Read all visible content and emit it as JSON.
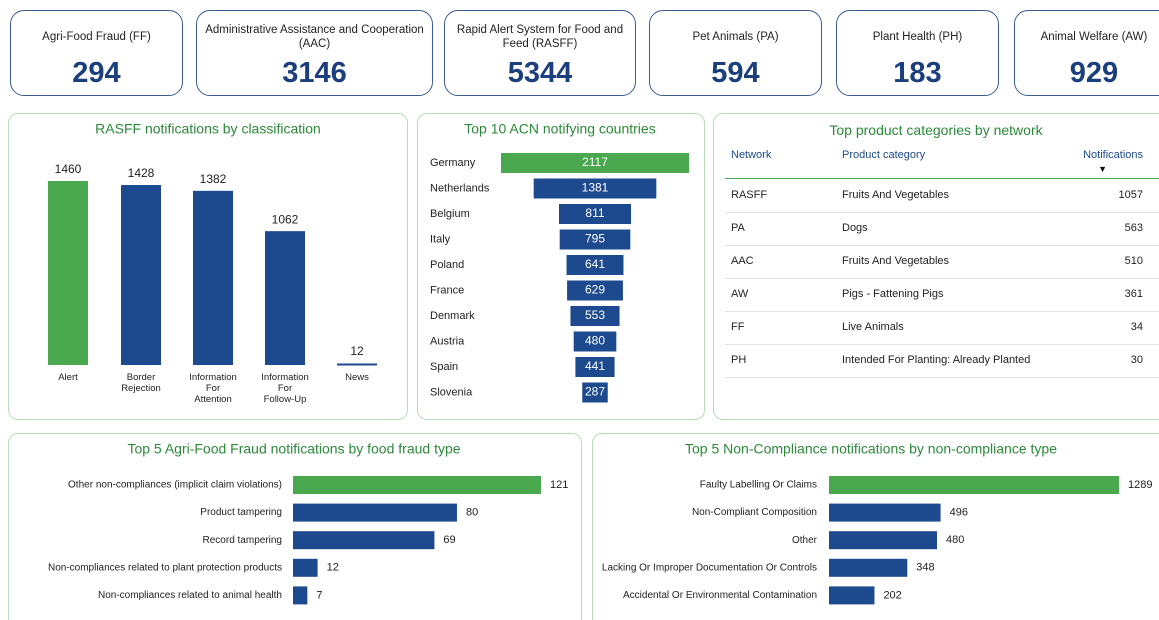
{
  "kpis": [
    {
      "label": "Agri-Food Fraud (FF)",
      "value": 294
    },
    {
      "label": "Administrative Assistance and Cooperation (AAC)",
      "value": 3146
    },
    {
      "label": "Rapid Alert System for Food and Feed (RASFF)",
      "value": 5344
    },
    {
      "label": "Pet Animals (PA)",
      "value": 594
    },
    {
      "label": "Plant Health (PH)",
      "value": 183
    },
    {
      "label": "Animal Welfare (AW)",
      "value": 929
    }
  ],
  "chart_data": [
    {
      "type": "bar",
      "title": "RASFF notifications by classification",
      "categories": [
        "Alert",
        "Border Rejection",
        "Information For Attention",
        "Information For Follow-Up",
        "News"
      ],
      "values": [
        1460,
        1428,
        1382,
        1062,
        12
      ],
      "colors": [
        "#4aa84e",
        "#1d4a8e",
        "#1d4a8e",
        "#1d4a8e",
        "#1d4a8e"
      ]
    },
    {
      "type": "funnel",
      "title": "Top 10 ACN notifying countries",
      "categories": [
        "Germany",
        "Netherlands",
        "Belgium",
        "Italy",
        "Poland",
        "France",
        "Denmark",
        "Austria",
        "Spain",
        "Slovenia"
      ],
      "values": [
        2117,
        1381,
        811,
        795,
        641,
        629,
        553,
        480,
        441,
        287
      ],
      "colors": [
        "#4aa84e",
        "#1d4a8e",
        "#1d4a8e",
        "#1d4a8e",
        "#1d4a8e",
        "#1d4a8e",
        "#1d4a8e",
        "#1d4a8e",
        "#1d4a8e",
        "#1d4a8e"
      ]
    },
    {
      "type": "bar",
      "orientation": "horizontal",
      "title": "Top 5 Agri-Food Fraud notifications by food fraud type",
      "categories": [
        "Other non-compliances (implicit claim violations)",
        "Product tampering",
        "Record tampering",
        "Non-compliances related to plant protection products",
        "Non-compliances related to animal health"
      ],
      "values": [
        121,
        80,
        69,
        12,
        7
      ],
      "colors": [
        "#4aa84e",
        "#1d4a8e",
        "#1d4a8e",
        "#1d4a8e",
        "#1d4a8e"
      ]
    },
    {
      "type": "bar",
      "orientation": "horizontal",
      "title": "Top 5 Non-Compliance notifications by non-compliance type",
      "categories": [
        "Faulty Labelling Or Claims",
        "Non-Compliant Composition",
        "Other",
        "Lacking Or Improper Documentation Or Controls",
        "Accidental Or Environmental Contamination"
      ],
      "values": [
        1289,
        496,
        480,
        348,
        202
      ],
      "colors": [
        "#4aa84e",
        "#1d4a8e",
        "#1d4a8e",
        "#1d4a8e",
        "#1d4a8e"
      ]
    }
  ],
  "table": {
    "title": "Top product categories by network",
    "columns": [
      "Network",
      "Product category",
      "Notifications"
    ],
    "rows": [
      [
        "RASFF",
        "Fruits And Vegetables",
        1057
      ],
      [
        "PA",
        "Dogs",
        563
      ],
      [
        "AAC",
        "Fruits And Vegetables",
        510
      ],
      [
        "AW",
        "Pigs - Fattening Pigs",
        361
      ],
      [
        "FF",
        "Live Animals",
        34
      ],
      [
        "PH",
        "Intended For Planting: Already Planted",
        30
      ]
    ]
  }
}
